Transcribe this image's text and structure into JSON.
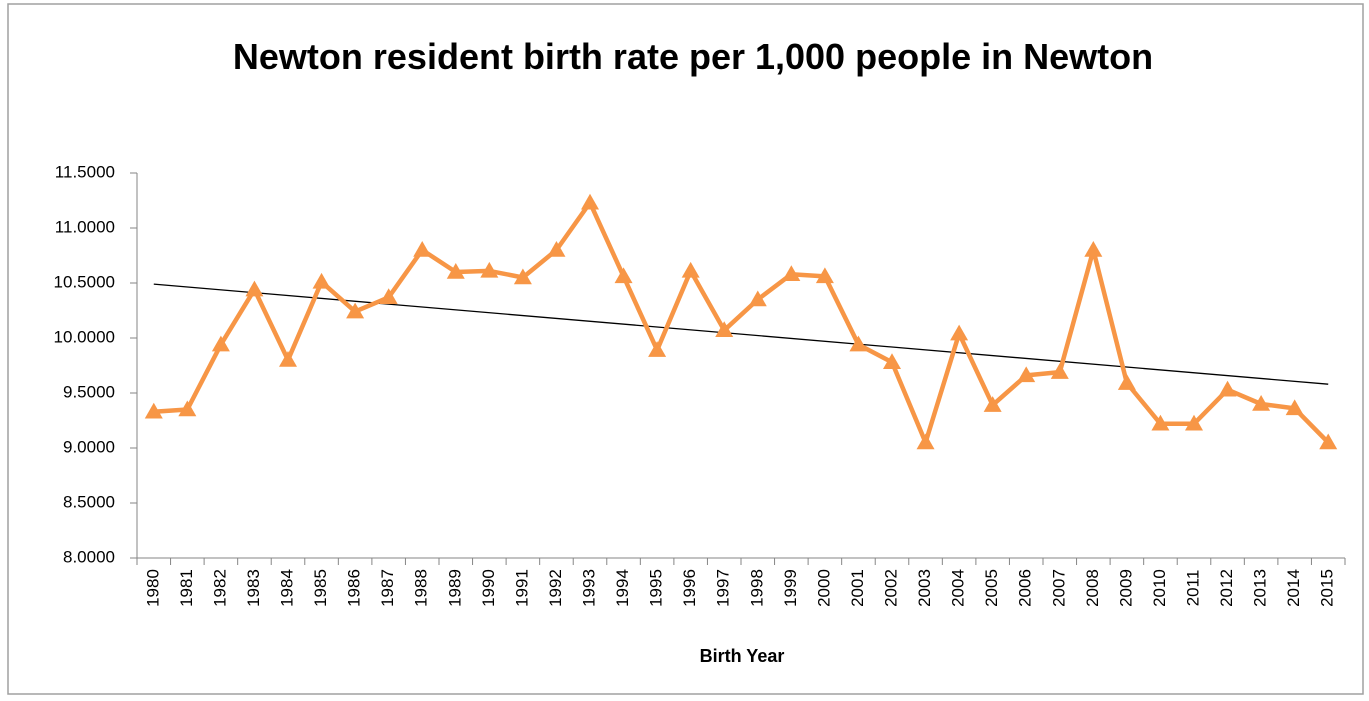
{
  "chart_data": {
    "type": "line",
    "title": "Newton resident birth rate per 1,000 people in Newton",
    "x_label": "Birth Year",
    "categories": [
      "1980",
      "1981",
      "1982",
      "1983",
      "1984",
      "1985",
      "1986",
      "1987",
      "1988",
      "1989",
      "1990",
      "1991",
      "1992",
      "1993",
      "1994",
      "1995",
      "1996",
      "1997",
      "1998",
      "1999",
      "2000",
      "2001",
      "2002",
      "2003",
      "2004",
      "2005",
      "2006",
      "2007",
      "2008",
      "2009",
      "2010",
      "2011",
      "2012",
      "2013",
      "2014",
      "2015"
    ],
    "values": [
      9.33,
      9.35,
      9.94,
      10.44,
      9.8,
      10.51,
      10.24,
      10.37,
      10.8,
      10.6,
      10.61,
      10.55,
      10.8,
      11.23,
      10.56,
      9.89,
      10.61,
      10.07,
      10.35,
      10.58,
      10.56,
      9.94,
      9.78,
      9.05,
      10.04,
      9.39,
      9.66,
      9.69,
      10.8,
      9.59,
      9.22,
      9.22,
      9.53,
      9.4,
      9.36,
      9.05
    ],
    "color": "#f79646",
    "marker": "triangle",
    "trendline": {
      "values": [
        10.49,
        9.58
      ],
      "color": "#000000"
    },
    "ylim": [
      8,
      11.5
    ],
    "yticks": [
      {
        "value": 8,
        "label": "8.0000"
      },
      {
        "value": 8.5,
        "label": "8.5000"
      },
      {
        "value": 9,
        "label": "9.0000"
      },
      {
        "value": 9.5,
        "label": "9.5000"
      },
      {
        "value": 10,
        "label": "10.0000"
      },
      {
        "value": 10.5,
        "label": "10.5000"
      },
      {
        "value": 11,
        "label": "11.0000"
      },
      {
        "value": 11.5,
        "label": "11.5000"
      }
    ],
    "grid": false
  }
}
